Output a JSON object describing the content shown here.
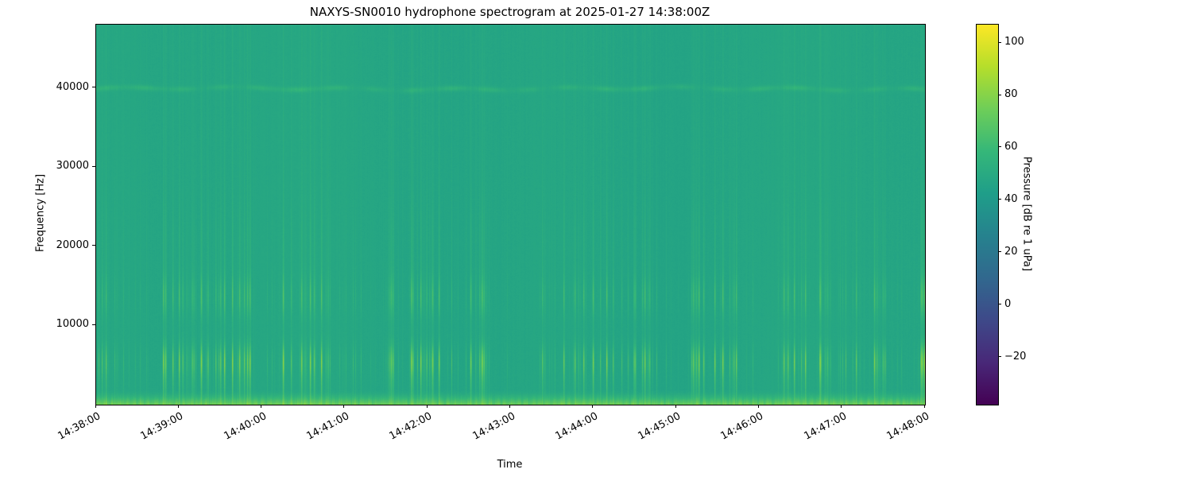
{
  "figure": {
    "title": "NAXYS-SN0010 hydrophone spectrogram at 2025-01-27 14:38:00Z",
    "xlabel": "Time",
    "ylabel": "Frequency [Hz]",
    "colorbar_label": "Pressure [dB re 1 uPa]"
  },
  "chart_data": {
    "type": "heatmap",
    "subtype": "hydrophone-spectrogram",
    "title": "NAXYS-SN0010 hydrophone spectrogram at 2025-01-27 14:38:00Z",
    "xlabel": "Time",
    "ylabel": "Frequency [Hz]",
    "colorbar_label": "Pressure [dB re 1 uPa]",
    "colormap": "viridis",
    "legend_position": "colorbar-right",
    "grid": false,
    "time_start": "14:38:00",
    "time_end": "14:48:00",
    "x_tick_labels": [
      "14:38:00",
      "14:39:00",
      "14:40:00",
      "14:41:00",
      "14:42:00",
      "14:43:00",
      "14:44:00",
      "14:45:00",
      "14:46:00",
      "14:47:00",
      "14:48:00"
    ],
    "x_tick_rotation_deg": 28,
    "y_tick_values": [
      10000,
      20000,
      30000,
      40000
    ],
    "y_tick_labels": [
      "10000",
      "20000",
      "30000",
      "40000"
    ],
    "freq_range_hz": [
      0,
      48000
    ],
    "color_range_db": [
      -38,
      107
    ],
    "colorbar_tick_values": [
      100,
      80,
      60,
      40,
      20,
      0,
      -20
    ],
    "colorbar_tick_labels": [
      "100",
      "80",
      "60",
      "40",
      "20",
      "0",
      "−20"
    ],
    "ambient_level_db": 48,
    "features": {
      "low_band": {
        "max_freq_hz": 1900,
        "boost_db": 27,
        "description": "bright yellow-green band at lowest frequencies (below ~1.5 kHz), ~75-82 dB"
      },
      "tonal_line": {
        "freq_hz": 39900,
        "boost_db": 5,
        "description": "faint wavy tonal line near 40 kHz, ~53-56 dB"
      },
      "clicks": {
        "count": 330,
        "primary_band_hz": [
          3000,
          8000
        ],
        "secondary_band_hz": [
          11500,
          16000
        ],
        "peak_level_db": 80,
        "description": "broadband vertical click transients spanning full bandwidth, strongest near 5-6 kHz and 13-14 kHz",
        "burst_centers_frac": [
          0.005,
          0.09,
          0.115,
          0.135,
          0.175,
          0.26,
          0.29,
          0.355,
          0.4,
          0.465,
          0.575,
          0.615,
          0.655,
          0.73,
          0.76,
          0.845,
          0.88,
          0.915,
          0.945,
          0.995
        ]
      }
    },
    "render_seed": 20250127
  },
  "colors": {
    "figure_background": "#ffffff",
    "text": "#000000",
    "spine": "#000000",
    "ambient_teal": "#21a386",
    "viridis_stops": [
      "#440154",
      "#482878",
      "#3e4989",
      "#31688e",
      "#26828e",
      "#1f9e89",
      "#35b779",
      "#6ece58",
      "#b5de2b",
      "#fde725"
    ]
  }
}
